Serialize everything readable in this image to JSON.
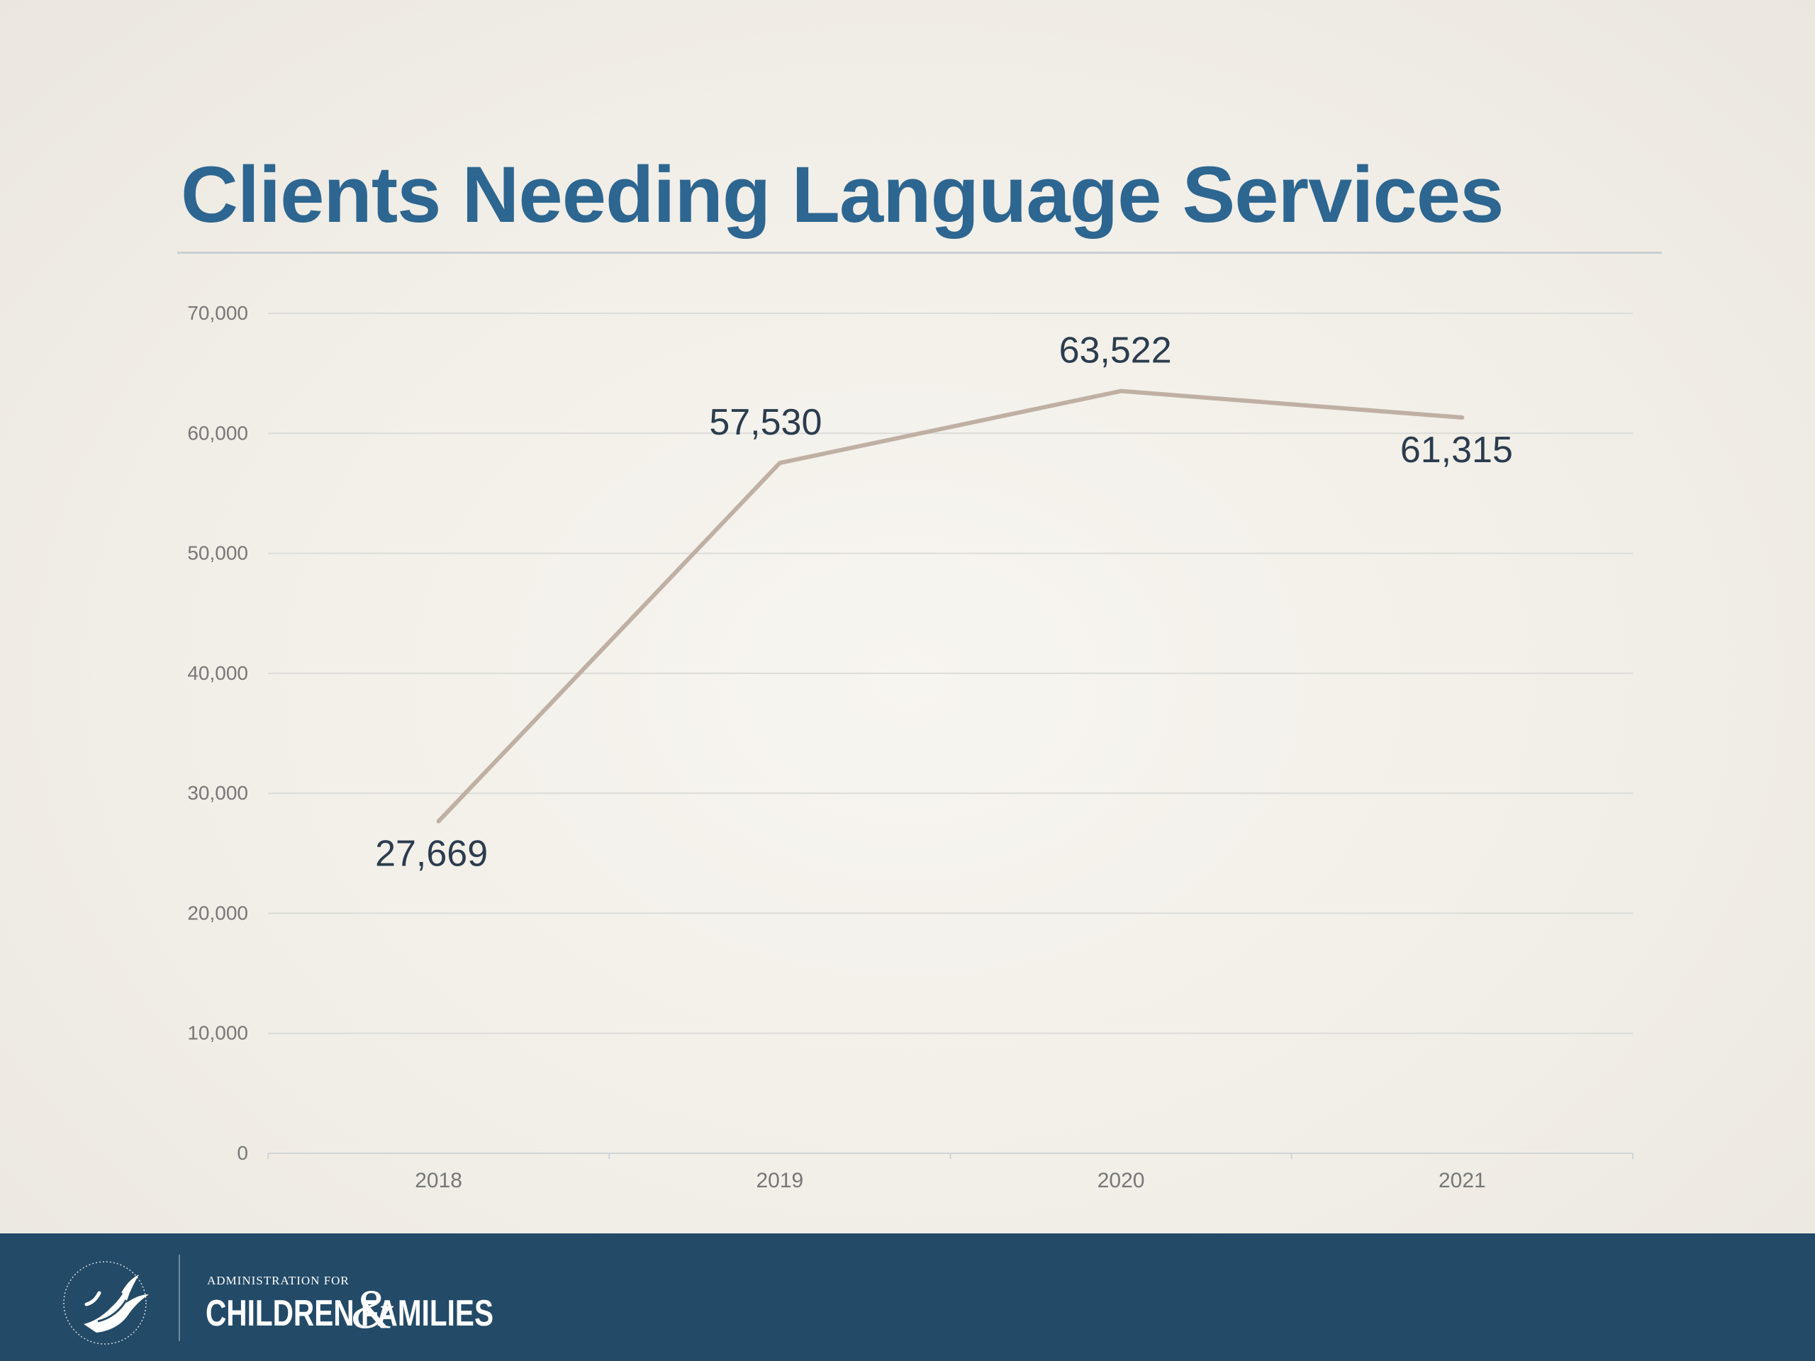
{
  "slide": {
    "title": "Clients Needing Language Services"
  },
  "chart_data": {
    "type": "line",
    "title": "Clients Needing Language Services",
    "categories": [
      "2018",
      "2019",
      "2020",
      "2021"
    ],
    "series": [
      {
        "values": [
          27669,
          57530,
          63522,
          61315
        ],
        "data_labels": [
          "27,669",
          "57,530",
          "63,522",
          "61,315"
        ],
        "color": "#bfb0a3"
      }
    ],
    "ylim": [
      0,
      70000
    ],
    "yticks": [
      0,
      10000,
      20000,
      30000,
      40000,
      50000,
      60000,
      70000
    ],
    "ytick_labels": [
      "0",
      "10,000",
      "20,000",
      "30,000",
      "40,000",
      "50,000",
      "60,000",
      "70,000"
    ],
    "grid": true,
    "legend": "none",
    "colors": {
      "grid": "#dcdcd8",
      "ticks": "#777777",
      "data_labels": "#2b3c4e"
    }
  },
  "footer": {
    "admin_text": "ADMINISTRATION FOR",
    "org_word1": "CHILDREN",
    "org_amp": "&",
    "org_word2": "FAMILIES",
    "seal_icon": "hhs-eagle-seal-icon",
    "background": "#234a67"
  }
}
